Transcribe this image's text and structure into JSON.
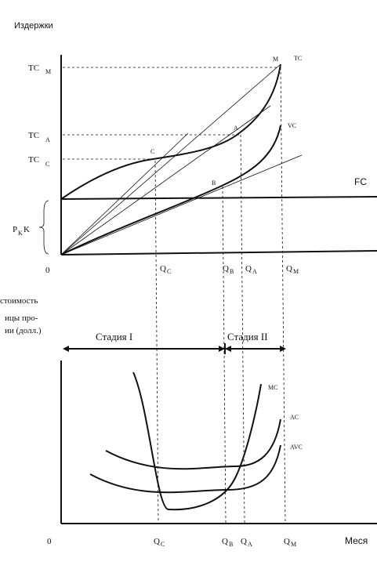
{
  "top_chart": {
    "y_axis_label": "Издержки",
    "y_labels": [
      {
        "main": "TC",
        "sub": "M"
      },
      {
        "main": "TC",
        "sub": "A"
      },
      {
        "main": "TC",
        "sub": "C"
      }
    ],
    "fixed_cost_label": {
      "main": "P",
      "sub": "K",
      "suffix": "K"
    },
    "origin": "0",
    "x_labels": [
      {
        "main": "Q",
        "sub": "C"
      },
      {
        "main": "Q",
        "sub": "B"
      },
      {
        "main": "Q",
        "sub": "A"
      },
      {
        "main": "Q",
        "sub": "M"
      }
    ],
    "point_labels": [
      "M",
      "A",
      "C",
      "B"
    ],
    "curve_labels": [
      "TC",
      "VC",
      "FC"
    ]
  },
  "bottom_chart": {
    "y_axis_label": [
      "стоимость",
      "ицы про-",
      "ии (долл.)"
    ],
    "stages": [
      "Стадия I",
      "Стадия II"
    ],
    "curve_labels": [
      "MC",
      "AC",
      "AVC"
    ],
    "origin": "0",
    "x_labels": [
      {
        "main": "Q",
        "sub": "C"
      },
      {
        "main": "Q",
        "sub": "B"
      },
      {
        "main": "Q",
        "sub": "A"
      },
      {
        "main": "Q",
        "sub": "M"
      }
    ],
    "x_axis_label": "Меся"
  }
}
